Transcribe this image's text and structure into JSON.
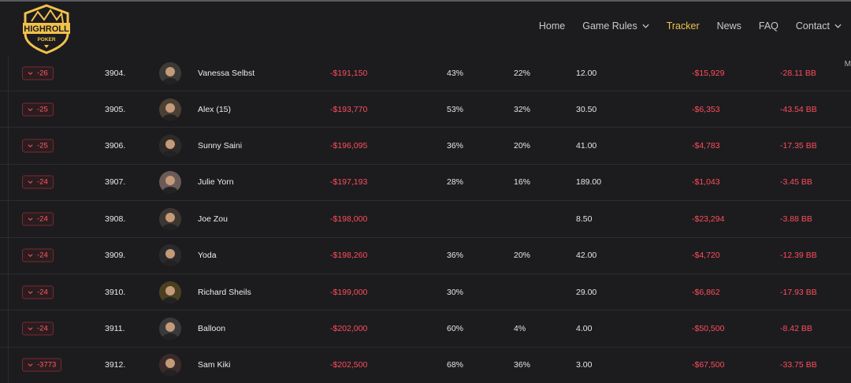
{
  "brand": {
    "top_text": "HIGHROLL",
    "bottom_text": "POKER",
    "gold": "#f2c14b"
  },
  "nav": [
    {
      "label": "Home",
      "has_dropdown": false,
      "active": false
    },
    {
      "label": "Game Rules",
      "has_dropdown": true,
      "active": false
    },
    {
      "label": "Tracker",
      "has_dropdown": false,
      "active": true
    },
    {
      "label": "News",
      "has_dropdown": false,
      "active": false
    },
    {
      "label": "FAQ",
      "has_dropdown": false,
      "active": false
    },
    {
      "label": "Contact",
      "has_dropdown": true,
      "active": false
    }
  ],
  "edge_fragment": "M",
  "rows": [
    {
      "change": "-26",
      "rank": "3904.",
      "name": "Vanessa Selbst",
      "winnings": "-$191,150",
      "p1": "43%",
      "p2": "22%",
      "avg": "12.00",
      "profit": "-$15,929",
      "bb": "-28.11 BB"
    },
    {
      "change": "-25",
      "rank": "3905.",
      "name": "Alex (15)",
      "winnings": "-$193,770",
      "p1": "53%",
      "p2": "32%",
      "avg": "30.50",
      "profit": "-$6,353",
      "bb": "-43.54 BB"
    },
    {
      "change": "-25",
      "rank": "3906.",
      "name": "Sunny Saini",
      "winnings": "-$196,095",
      "p1": "36%",
      "p2": "20%",
      "avg": "41.00",
      "profit": "-$4,783",
      "bb": "-17.35 BB"
    },
    {
      "change": "-24",
      "rank": "3907.",
      "name": "Julie Yorn",
      "winnings": "-$197,193",
      "p1": "28%",
      "p2": "16%",
      "avg": "189.00",
      "profit": "-$1,043",
      "bb": "-3.45 BB"
    },
    {
      "change": "-24",
      "rank": "3908.",
      "name": "Joe Zou",
      "winnings": "-$198,000",
      "p1": "",
      "p2": "",
      "avg": "8.50",
      "profit": "-$23,294",
      "bb": "-3.88 BB"
    },
    {
      "change": "-24",
      "rank": "3909.",
      "name": "Yoda",
      "winnings": "-$198,260",
      "p1": "36%",
      "p2": "20%",
      "avg": "42.00",
      "profit": "-$4,720",
      "bb": "-12.39 BB"
    },
    {
      "change": "-24",
      "rank": "3910.",
      "name": "Richard Sheils",
      "winnings": "-$199,000",
      "p1": "30%",
      "p2": "",
      "avg": "29.00",
      "profit": "-$6,862",
      "bb": "-17.93 BB"
    },
    {
      "change": "-24",
      "rank": "3911.",
      "name": "Balloon",
      "winnings": "-$202,000",
      "p1": "60%",
      "p2": "4%",
      "avg": "4.00",
      "profit": "-$50,500",
      "bb": "-8.42 BB"
    },
    {
      "change": "-3773",
      "rank": "3912.",
      "name": "Sam Kiki",
      "winnings": "-$202,500",
      "p1": "68%",
      "p2": "36%",
      "avg": "3.00",
      "profit": "-$67,500",
      "bb": "-33.75 BB"
    }
  ]
}
